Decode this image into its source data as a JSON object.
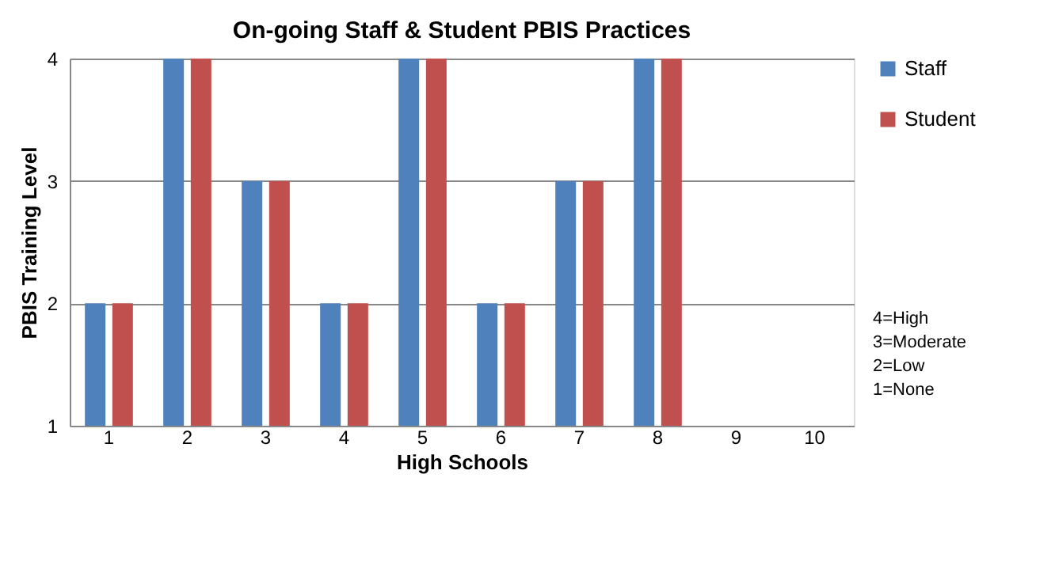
{
  "chart_data": {
    "type": "bar",
    "title": "On-going Staff & Student PBIS Practices",
    "xlabel": "High Schools",
    "ylabel": "PBIS Training Level",
    "categories": [
      "1",
      "2",
      "3",
      "4",
      "5",
      "6",
      "7",
      "8",
      "9",
      "10"
    ],
    "series": [
      {
        "name": "Staff",
        "color": "#4f81bd",
        "values": [
          2,
          4,
          3,
          2,
          4,
          2,
          3,
          4,
          null,
          null
        ]
      },
      {
        "name": "Student",
        "color": "#c0504d",
        "values": [
          2,
          4,
          3,
          2,
          4,
          2,
          3,
          4,
          null,
          null
        ]
      }
    ],
    "ylim": [
      1,
      4
    ],
    "yticks": [
      1,
      2,
      3,
      4
    ],
    "grid": "y",
    "legend": "right",
    "annotations": [
      "4=High",
      "3=Moderate",
      "2=Low",
      "1=None"
    ]
  }
}
